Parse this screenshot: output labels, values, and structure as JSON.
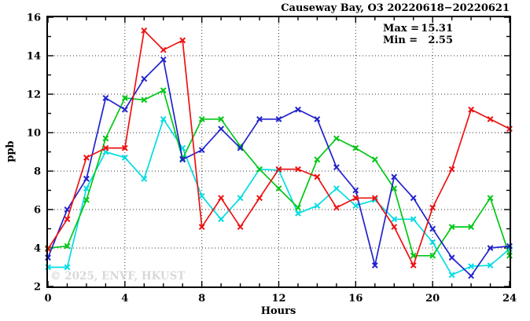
{
  "page": {
    "background": "#ffffff"
  },
  "chart": {
    "title": "Causeway Bay, O3 20220618−20220621",
    "xlabel": "Hours",
    "ylabel": "ppb",
    "watermark": "© 2025, ENVF, HKUST",
    "legend": {
      "max_label": "Max =",
      "max_value": "15.31",
      "min_label": "Min =",
      "min_value": "2.55"
    }
  },
  "chart_data": {
    "type": "line",
    "title": "Causeway Bay, O3 20220618−20220621",
    "xlabel": "Hours",
    "ylabel": "ppb",
    "xlim": [
      0,
      24
    ],
    "ylim": [
      2,
      16
    ],
    "x_major_ticks": [
      0,
      4,
      8,
      12,
      16,
      20,
      24
    ],
    "y_major_ticks": [
      2,
      4,
      6,
      8,
      10,
      12,
      14,
      16
    ],
    "minor_tick_step": 1,
    "grid_x": [
      4,
      8,
      12,
      16,
      20
    ],
    "grid_y": [
      4,
      6,
      8,
      10,
      12,
      14
    ],
    "grid_style": "dotted",
    "legend_position": "top-right-inside",
    "max": 15.31,
    "min": 2.55,
    "x": [
      0,
      1,
      2,
      3,
      4,
      5,
      6,
      7,
      8,
      9,
      10,
      11,
      12,
      13,
      14,
      15,
      16,
      17,
      18,
      19,
      20,
      21,
      22,
      23,
      24
    ],
    "series": [
      {
        "name": "cyan",
        "color": "#00dde4",
        "values": [
          3.0,
          3.0,
          7.1,
          9.0,
          8.7,
          7.6,
          10.7,
          9.2,
          6.7,
          5.5,
          6.6,
          8.1,
          8.05,
          5.8,
          6.2,
          7.1,
          6.2,
          6.5,
          5.5,
          5.5,
          4.3,
          2.6,
          3.05,
          3.1,
          3.95
        ]
      },
      {
        "name": "green",
        "color": "#00c816",
        "values": [
          4.0,
          4.1,
          6.5,
          9.7,
          11.8,
          11.7,
          12.2,
          8.65,
          10.7,
          10.7,
          9.3,
          8.1,
          7.1,
          6.1,
          8.6,
          9.7,
          9.2,
          8.6,
          7.1,
          3.6,
          3.6,
          5.1,
          5.1,
          6.6,
          3.6
        ]
      },
      {
        "name": "blue",
        "color": "#2222cc",
        "values": [
          3.5,
          6.0,
          7.6,
          11.8,
          11.2,
          12.8,
          13.8,
          8.6,
          9.1,
          10.2,
          9.2,
          10.7,
          10.7,
          11.2,
          10.7,
          8.2,
          7.0,
          3.1,
          7.7,
          6.6,
          5.0,
          3.5,
          2.55,
          4.0,
          4.1
        ]
      },
      {
        "name": "red",
        "color": "#ee1111",
        "values": [
          3.95,
          5.5,
          8.7,
          9.2,
          9.2,
          15.31,
          14.3,
          14.8,
          5.1,
          6.6,
          5.1,
          6.6,
          8.1,
          8.1,
          7.7,
          6.1,
          6.6,
          6.6,
          5.1,
          3.1,
          6.1,
          8.1,
          11.2,
          10.7,
          10.2
        ]
      }
    ]
  }
}
